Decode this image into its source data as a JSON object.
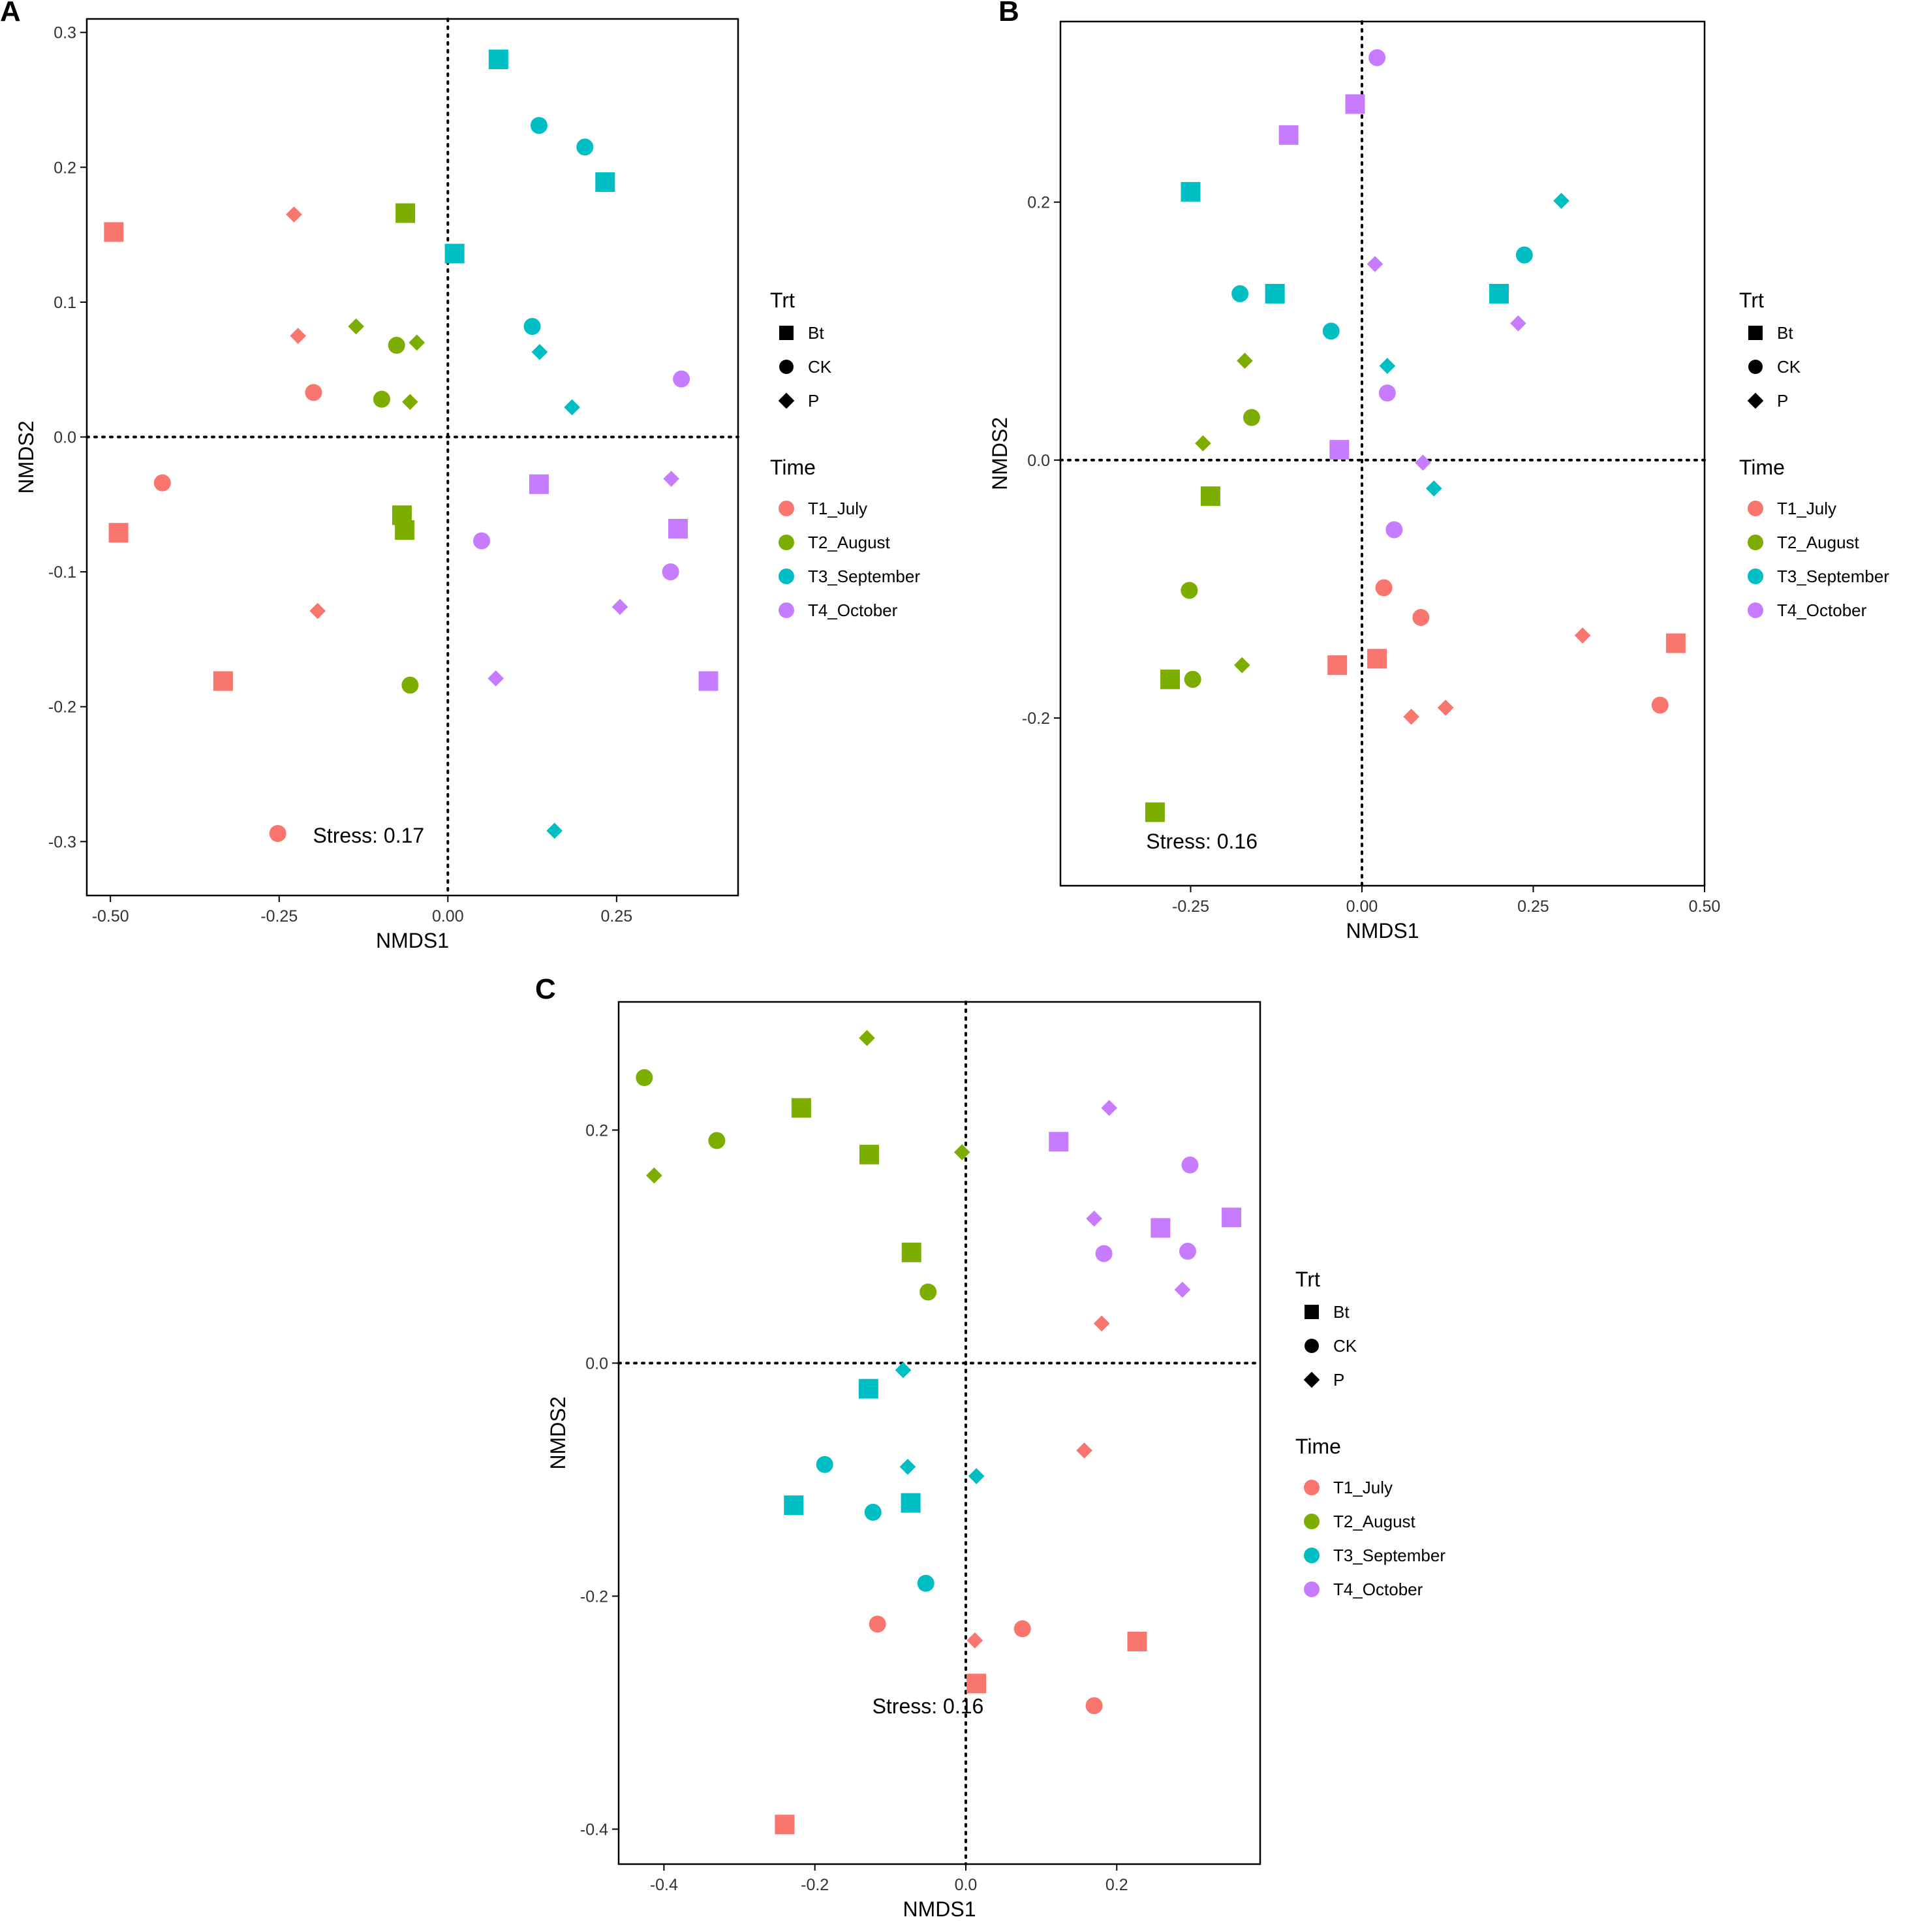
{
  "figure": {
    "legend": {
      "trt_title": "Trt",
      "trt_items": [
        "Bt",
        "CK",
        "P"
      ],
      "time_title": "Time",
      "time_items": [
        "T1_July",
        "T2_August",
        "T3_September",
        "T4_October"
      ],
      "time_colors": {
        "T1_July": "#F8766D",
        "T2_August": "#7CAE00",
        "T3_September": "#00BFC4",
        "T4_October": "#C77CFF"
      }
    }
  },
  "chart_data": [
    {
      "panel": "A",
      "type": "scatter",
      "xlabel": "NMDS1",
      "ylabel": "NMDS2",
      "xlim": [
        -0.535,
        0.43
      ],
      "ylim": [
        -0.34,
        0.31
      ],
      "xticks": [
        -0.5,
        -0.25,
        0.0,
        0.25
      ],
      "xtick_labels": [
        "-0.50",
        "-0.25",
        "0.00",
        "0.25"
      ],
      "yticks": [
        -0.3,
        -0.2,
        -0.1,
        0.0,
        0.1,
        0.2,
        0.3
      ],
      "ytick_labels": [
        "-0.3",
        "-0.2",
        "-0.1",
        "0.0",
        "0.1",
        "0.2",
        "0.3"
      ],
      "stress": "Stress: 0.17",
      "stress_pos": [
        -0.2,
        -0.295
      ],
      "points": [
        {
          "x": -0.495,
          "y": 0.152,
          "time": "T1_July",
          "trt": "Bt"
        },
        {
          "x": -0.488,
          "y": -0.071,
          "time": "T1_July",
          "trt": "Bt"
        },
        {
          "x": -0.333,
          "y": -0.181,
          "time": "T1_July",
          "trt": "Bt"
        },
        {
          "x": -0.423,
          "y": -0.034,
          "time": "T1_July",
          "trt": "CK"
        },
        {
          "x": -0.199,
          "y": 0.033,
          "time": "T1_July",
          "trt": "CK"
        },
        {
          "x": -0.252,
          "y": -0.294,
          "time": "T1_July",
          "trt": "CK"
        },
        {
          "x": -0.228,
          "y": 0.165,
          "time": "T1_July",
          "trt": "P"
        },
        {
          "x": -0.222,
          "y": 0.075,
          "time": "T1_July",
          "trt": "P"
        },
        {
          "x": -0.193,
          "y": -0.129,
          "time": "T1_July",
          "trt": "P"
        },
        {
          "x": -0.063,
          "y": 0.166,
          "time": "T2_August",
          "trt": "Bt"
        },
        {
          "x": -0.068,
          "y": -0.058,
          "time": "T2_August",
          "trt": "Bt"
        },
        {
          "x": -0.064,
          "y": -0.069,
          "time": "T2_August",
          "trt": "Bt"
        },
        {
          "x": -0.076,
          "y": 0.068,
          "time": "T2_August",
          "trt": "CK"
        },
        {
          "x": -0.098,
          "y": 0.028,
          "time": "T2_August",
          "trt": "CK"
        },
        {
          "x": -0.056,
          "y": -0.184,
          "time": "T2_August",
          "trt": "CK"
        },
        {
          "x": -0.136,
          "y": 0.082,
          "time": "T2_August",
          "trt": "P"
        },
        {
          "x": -0.046,
          "y": 0.07,
          "time": "T2_August",
          "trt": "P"
        },
        {
          "x": -0.056,
          "y": 0.026,
          "time": "T2_August",
          "trt": "P"
        },
        {
          "x": 0.075,
          "y": 0.28,
          "time": "T3_September",
          "trt": "Bt"
        },
        {
          "x": 0.233,
          "y": 0.189,
          "time": "T3_September",
          "trt": "Bt"
        },
        {
          "x": 0.01,
          "y": 0.136,
          "time": "T3_September",
          "trt": "Bt"
        },
        {
          "x": 0.135,
          "y": 0.231,
          "time": "T3_September",
          "trt": "CK"
        },
        {
          "x": 0.203,
          "y": 0.215,
          "time": "T3_September",
          "trt": "CK"
        },
        {
          "x": 0.125,
          "y": 0.082,
          "time": "T3_September",
          "trt": "CK"
        },
        {
          "x": 0.136,
          "y": 0.063,
          "time": "T3_September",
          "trt": "P"
        },
        {
          "x": 0.184,
          "y": 0.022,
          "time": "T3_September",
          "trt": "P"
        },
        {
          "x": 0.158,
          "y": -0.292,
          "time": "T3_September",
          "trt": "P"
        },
        {
          "x": 0.135,
          "y": -0.035,
          "time": "T4_October",
          "trt": "Bt"
        },
        {
          "x": 0.341,
          "y": -0.068,
          "time": "T4_October",
          "trt": "Bt"
        },
        {
          "x": 0.386,
          "y": -0.181,
          "time": "T4_October",
          "trt": "Bt"
        },
        {
          "x": 0.346,
          "y": 0.043,
          "time": "T4_October",
          "trt": "CK"
        },
        {
          "x": 0.05,
          "y": -0.077,
          "time": "T4_October",
          "trt": "CK"
        },
        {
          "x": 0.33,
          "y": -0.1,
          "time": "T4_October",
          "trt": "CK"
        },
        {
          "x": 0.331,
          "y": -0.031,
          "time": "T4_October",
          "trt": "P"
        },
        {
          "x": 0.255,
          "y": -0.126,
          "time": "T4_October",
          "trt": "P"
        },
        {
          "x": 0.071,
          "y": -0.179,
          "time": "T4_October",
          "trt": "P"
        }
      ]
    },
    {
      "panel": "B",
      "type": "scatter",
      "xlabel": "NMDS1",
      "ylabel": "NMDS2",
      "xlim": [
        -0.44,
        0.5
      ],
      "ylim": [
        -0.33,
        0.34
      ],
      "xticks": [
        -0.25,
        0.0,
        0.25,
        0.5
      ],
      "xtick_labels": [
        "-0.25",
        "0.00",
        "0.25",
        "0.50"
      ],
      "yticks": [
        -0.2,
        0.0,
        0.2
      ],
      "ytick_labels": [
        "-0.2",
        "0.0",
        "0.2"
      ],
      "stress": "Stress: 0.16",
      "stress_pos": [
        -0.315,
        -0.295
      ],
      "points": [
        {
          "x": 0.458,
          "y": -0.142,
          "time": "T1_July",
          "trt": "Bt"
        },
        {
          "x": -0.036,
          "y": -0.159,
          "time": "T1_July",
          "trt": "Bt"
        },
        {
          "x": 0.022,
          "y": -0.154,
          "time": "T1_July",
          "trt": "Bt"
        },
        {
          "x": 0.032,
          "y": -0.099,
          "time": "T1_July",
          "trt": "CK"
        },
        {
          "x": 0.086,
          "y": -0.122,
          "time": "T1_July",
          "trt": "CK"
        },
        {
          "x": 0.435,
          "y": -0.19,
          "time": "T1_July",
          "trt": "CK"
        },
        {
          "x": 0.322,
          "y": -0.136,
          "time": "T1_July",
          "trt": "P"
        },
        {
          "x": 0.122,
          "y": -0.192,
          "time": "T1_July",
          "trt": "P"
        },
        {
          "x": 0.072,
          "y": -0.199,
          "time": "T1_July",
          "trt": "P"
        },
        {
          "x": -0.221,
          "y": -0.028,
          "time": "T2_August",
          "trt": "Bt"
        },
        {
          "x": -0.28,
          "y": -0.17,
          "time": "T2_August",
          "trt": "Bt"
        },
        {
          "x": -0.302,
          "y": -0.273,
          "time": "T2_August",
          "trt": "Bt"
        },
        {
          "x": -0.161,
          "y": 0.033,
          "time": "T2_August",
          "trt": "CK"
        },
        {
          "x": -0.252,
          "y": -0.101,
          "time": "T2_August",
          "trt": "CK"
        },
        {
          "x": -0.247,
          "y": -0.17,
          "time": "T2_August",
          "trt": "CK"
        },
        {
          "x": -0.171,
          "y": 0.077,
          "time": "T2_August",
          "trt": "P"
        },
        {
          "x": -0.232,
          "y": 0.013,
          "time": "T2_August",
          "trt": "P"
        },
        {
          "x": -0.175,
          "y": -0.159,
          "time": "T2_August",
          "trt": "P"
        },
        {
          "x": -0.25,
          "y": 0.208,
          "time": "T3_September",
          "trt": "Bt"
        },
        {
          "x": -0.127,
          "y": 0.129,
          "time": "T3_September",
          "trt": "Bt"
        },
        {
          "x": 0.2,
          "y": 0.129,
          "time": "T3_September",
          "trt": "Bt"
        },
        {
          "x": -0.178,
          "y": 0.129,
          "time": "T3_September",
          "trt": "CK"
        },
        {
          "x": -0.045,
          "y": 0.1,
          "time": "T3_September",
          "trt": "CK"
        },
        {
          "x": 0.237,
          "y": 0.159,
          "time": "T3_September",
          "trt": "CK"
        },
        {
          "x": 0.291,
          "y": 0.201,
          "time": "T3_September",
          "trt": "P"
        },
        {
          "x": 0.037,
          "y": 0.073,
          "time": "T3_September",
          "trt": "P"
        },
        {
          "x": 0.105,
          "y": -0.022,
          "time": "T3_September",
          "trt": "P"
        },
        {
          "x": -0.107,
          "y": 0.252,
          "time": "T4_October",
          "trt": "Bt"
        },
        {
          "x": -0.01,
          "y": 0.276,
          "time": "T4_October",
          "trt": "Bt"
        },
        {
          "x": -0.033,
          "y": 0.008,
          "time": "T4_October",
          "trt": "Bt"
        },
        {
          "x": 0.022,
          "y": 0.312,
          "time": "T4_October",
          "trt": "CK"
        },
        {
          "x": 0.037,
          "y": 0.052,
          "time": "T4_October",
          "trt": "CK"
        },
        {
          "x": 0.047,
          "y": -0.054,
          "time": "T4_October",
          "trt": "CK"
        },
        {
          "x": 0.019,
          "y": 0.152,
          "time": "T4_October",
          "trt": "P"
        },
        {
          "x": 0.228,
          "y": 0.106,
          "time": "T4_October",
          "trt": "P"
        },
        {
          "x": 0.089,
          "y": -0.002,
          "time": "T4_October",
          "trt": "P"
        }
      ]
    },
    {
      "panel": "C",
      "type": "scatter",
      "xlabel": "NMDS1",
      "ylabel": "NMDS2",
      "xlim": [
        -0.46,
        0.39
      ],
      "ylim": [
        -0.43,
        0.31
      ],
      "xticks": [
        -0.4,
        -0.2,
        0.0,
        0.2
      ],
      "xtick_labels": [
        "-0.4",
        "-0.2",
        "0.0",
        "0.2"
      ],
      "yticks": [
        -0.4,
        -0.2,
        0.0,
        0.2
      ],
      "ytick_labels": [
        "-0.4",
        "-0.2",
        "0.0",
        "0.2"
      ],
      "stress": "Stress: 0.16",
      "stress_pos": [
        -0.124,
        -0.294
      ],
      "points": [
        {
          "x": 0.227,
          "y": -0.239,
          "time": "T1_July",
          "trt": "Bt"
        },
        {
          "x": 0.014,
          "y": -0.275,
          "time": "T1_July",
          "trt": "Bt"
        },
        {
          "x": -0.24,
          "y": -0.396,
          "time": "T1_July",
          "trt": "Bt"
        },
        {
          "x": -0.117,
          "y": -0.224,
          "time": "T1_July",
          "trt": "CK"
        },
        {
          "x": 0.075,
          "y": -0.228,
          "time": "T1_July",
          "trt": "CK"
        },
        {
          "x": 0.17,
          "y": -0.294,
          "time": "T1_July",
          "trt": "CK"
        },
        {
          "x": 0.157,
          "y": -0.075,
          "time": "T1_July",
          "trt": "P"
        },
        {
          "x": 0.18,
          "y": 0.034,
          "time": "T1_July",
          "trt": "P"
        },
        {
          "x": 0.012,
          "y": -0.238,
          "time": "T1_July",
          "trt": "P"
        },
        {
          "x": -0.218,
          "y": 0.219,
          "time": "T2_August",
          "trt": "Bt"
        },
        {
          "x": -0.128,
          "y": 0.179,
          "time": "T2_August",
          "trt": "Bt"
        },
        {
          "x": -0.072,
          "y": 0.095,
          "time": "T2_August",
          "trt": "Bt"
        },
        {
          "x": -0.426,
          "y": 0.245,
          "time": "T2_August",
          "trt": "CK"
        },
        {
          "x": -0.33,
          "y": 0.191,
          "time": "T2_August",
          "trt": "CK"
        },
        {
          "x": -0.05,
          "y": 0.061,
          "time": "T2_August",
          "trt": "CK"
        },
        {
          "x": -0.413,
          "y": 0.161,
          "time": "T2_August",
          "trt": "P"
        },
        {
          "x": -0.131,
          "y": 0.279,
          "time": "T2_August",
          "trt": "P"
        },
        {
          "x": -0.005,
          "y": 0.181,
          "time": "T2_August",
          "trt": "P"
        },
        {
          "x": -0.129,
          "y": -0.022,
          "time": "T3_September",
          "trt": "Bt"
        },
        {
          "x": -0.228,
          "y": -0.122,
          "time": "T3_September",
          "trt": "Bt"
        },
        {
          "x": -0.073,
          "y": -0.12,
          "time": "T3_September",
          "trt": "Bt"
        },
        {
          "x": -0.187,
          "y": -0.087,
          "time": "T3_September",
          "trt": "CK"
        },
        {
          "x": -0.123,
          "y": -0.128,
          "time": "T3_September",
          "trt": "CK"
        },
        {
          "x": -0.053,
          "y": -0.189,
          "time": "T3_September",
          "trt": "CK"
        },
        {
          "x": -0.083,
          "y": -0.006,
          "time": "T3_September",
          "trt": "P"
        },
        {
          "x": -0.077,
          "y": -0.089,
          "time": "T3_September",
          "trt": "P"
        },
        {
          "x": 0.014,
          "y": -0.097,
          "time": "T3_September",
          "trt": "P"
        },
        {
          "x": 0.123,
          "y": 0.19,
          "time": "T4_October",
          "trt": "Bt"
        },
        {
          "x": 0.258,
          "y": 0.116,
          "time": "T4_October",
          "trt": "Bt"
        },
        {
          "x": 0.352,
          "y": 0.125,
          "time": "T4_October",
          "trt": "Bt"
        },
        {
          "x": 0.297,
          "y": 0.17,
          "time": "T4_October",
          "trt": "CK"
        },
        {
          "x": 0.183,
          "y": 0.094,
          "time": "T4_October",
          "trt": "CK"
        },
        {
          "x": 0.294,
          "y": 0.096,
          "time": "T4_October",
          "trt": "CK"
        },
        {
          "x": 0.19,
          "y": 0.219,
          "time": "T4_October",
          "trt": "P"
        },
        {
          "x": 0.17,
          "y": 0.124,
          "time": "T4_October",
          "trt": "P"
        },
        {
          "x": 0.287,
          "y": 0.063,
          "time": "T4_October",
          "trt": "P"
        }
      ]
    }
  ]
}
